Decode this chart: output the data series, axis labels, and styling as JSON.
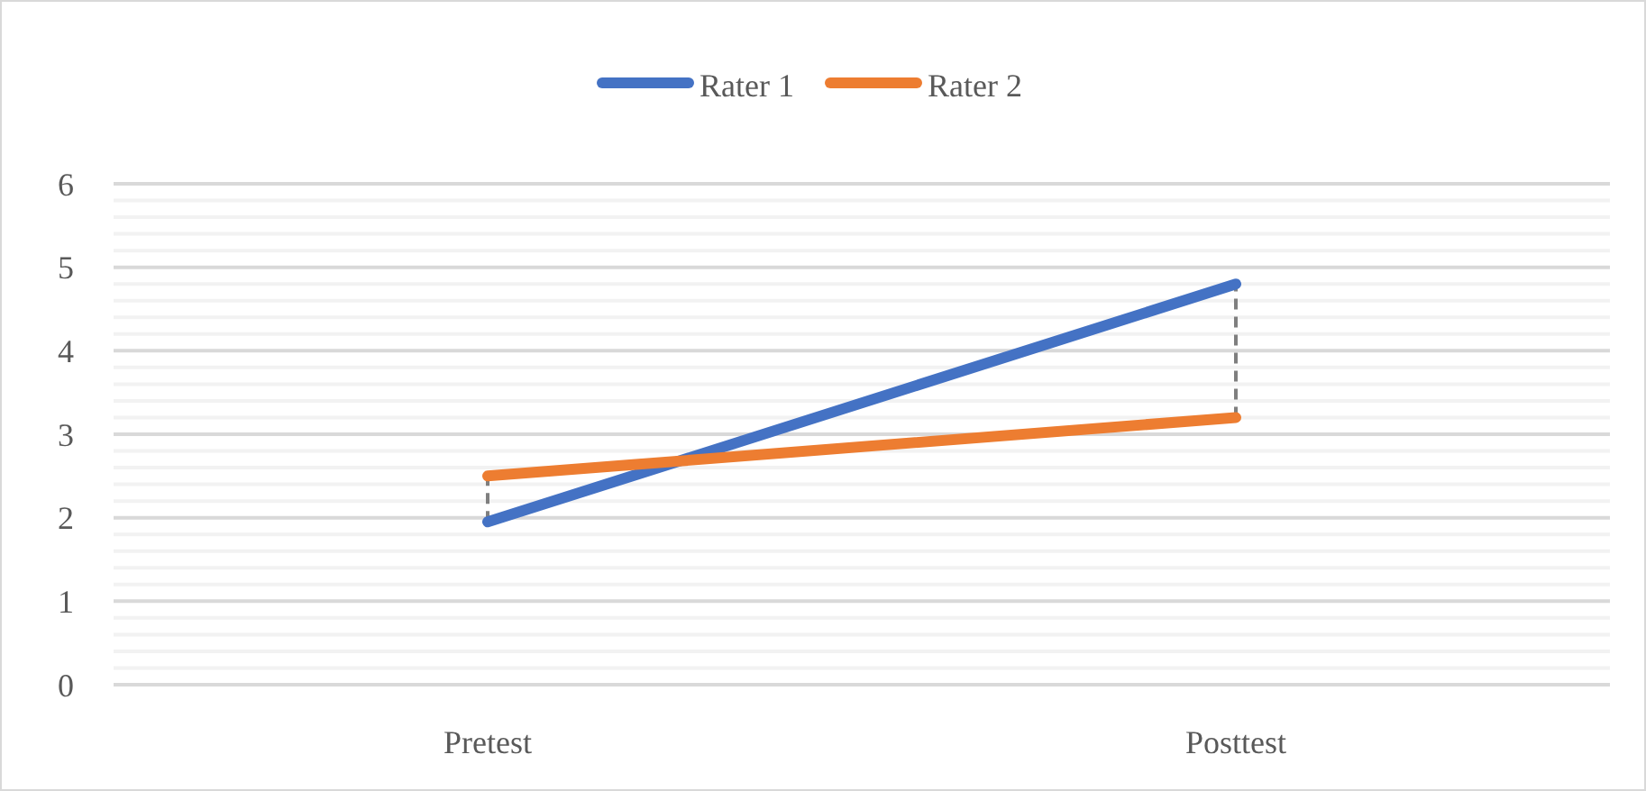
{
  "chart_data": {
    "type": "line",
    "categories": [
      "Pretest",
      "Posttest"
    ],
    "series": [
      {
        "name": "Rater 1",
        "color": "#4472c4",
        "values": [
          1.95,
          4.8
        ]
      },
      {
        "name": "Rater 2",
        "color": "#ed7d31",
        "values": [
          2.5,
          3.2
        ]
      }
    ],
    "ylim": [
      0,
      6
    ],
    "yticks": [
      0,
      1,
      2,
      3,
      4,
      5,
      6
    ],
    "grid": "y",
    "legend": "top",
    "marker": "none",
    "line_style": "solid"
  }
}
